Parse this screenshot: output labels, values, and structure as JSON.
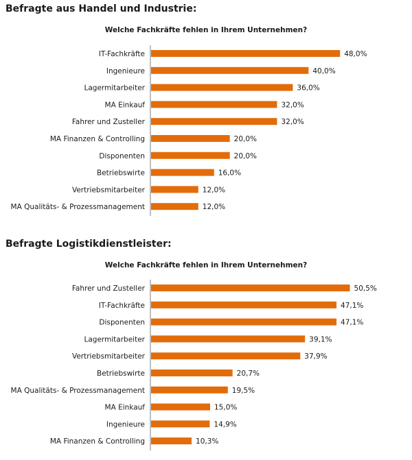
{
  "chart_data": [
    {
      "type": "bar",
      "orientation": "horizontal",
      "heading": "Befragte aus Handel und Industrie:",
      "title": "Welche Fachkräfte fehlen in Ihrem Unternehmen?",
      "categories": [
        "IT-Fachkräfte",
        "Ingenieure",
        "Lagermitarbeiter",
        "MA Einkauf",
        "Fahrer und Zusteller",
        "MA Finanzen & Controlling",
        "Disponenten",
        "Betriebswirte",
        "Vertriebsmitarbeiter",
        "MA Qualitäts- & Prozessmanagement"
      ],
      "values": [
        48.0,
        40.0,
        36.0,
        32.0,
        32.0,
        20.0,
        20.0,
        16.0,
        12.0,
        12.0
      ],
      "value_labels": [
        "48,0%",
        "40,0%",
        "36,0%",
        "32,0%",
        "32,0%",
        "20,0%",
        "20,0%",
        "16,0%",
        "12,0%",
        "12,0%"
      ],
      "xlim": [
        0,
        60
      ],
      "grid": false,
      "bar_color": "#e36c0a"
    },
    {
      "type": "bar",
      "orientation": "horizontal",
      "heading": "Befragte Logistikdienstleister:",
      "title": "Welche Fachkräfte fehlen in Ihrem Unternehmen?",
      "categories": [
        "Fahrer und Zusteller",
        "IT-Fachkräfte",
        "Disponenten",
        "Lagermitarbeiter",
        "Vertriebsmitarbeiter",
        "Betriebswirte",
        "MA Qualitäts- & Prozessmanagement",
        "MA Einkauf",
        "Ingenieure",
        "MA Finanzen & Controlling"
      ],
      "values": [
        50.5,
        47.1,
        47.1,
        39.1,
        37.9,
        20.7,
        19.5,
        15.0,
        14.9,
        10.3
      ],
      "value_labels": [
        "50,5%",
        "47,1%",
        "47,1%",
        "39,1%",
        "37,9%",
        "20,7%",
        "19,5%",
        "15,0%",
        "14,9%",
        "10,3%"
      ],
      "xlim": [
        0,
        60
      ],
      "grid": false,
      "bar_color": "#e36c0a"
    }
  ]
}
